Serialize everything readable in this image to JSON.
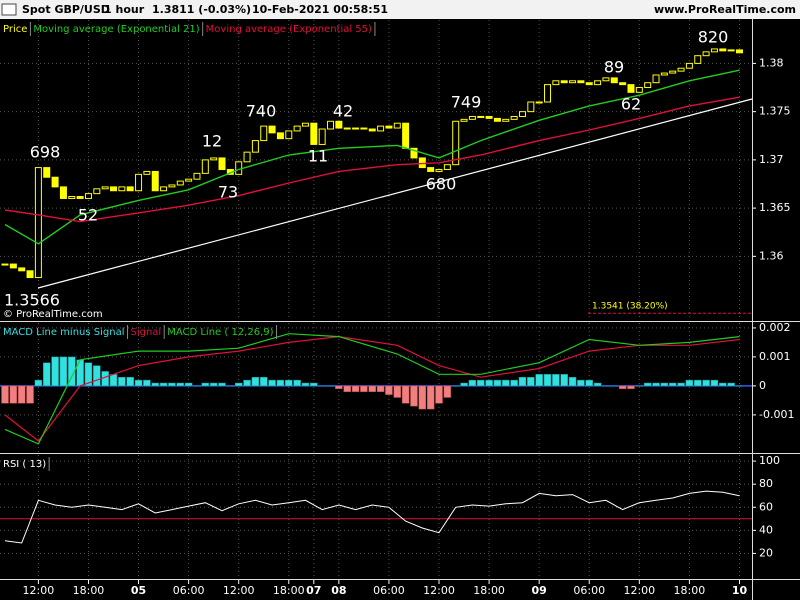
{
  "header": {
    "instrument": "Spot GBP/USD",
    "timeframe": "1 hour",
    "last": "1.3811 (-0.03%)",
    "timestamp": "10-Feb-2021 00:58:51",
    "site": "www.ProRealTime.com"
  },
  "chart_data": [
    {
      "type": "candlestick",
      "series": [
        {
          "name": "Price",
          "color": "#ffff00",
          "values": [
            1.3592,
            1.3588,
            1.3585,
            1.3578,
            1.3692,
            1.3682,
            1.3672,
            1.366,
            1.3662,
            1.366,
            1.3665,
            1.367,
            1.3672,
            1.3668,
            1.3672,
            1.3668,
            1.3685,
            1.3688,
            1.3668,
            1.3672,
            1.3674,
            1.3678,
            1.368,
            1.3686,
            1.37,
            1.3702,
            1.369,
            1.3685,
            1.3698,
            1.3708,
            1.372,
            1.3735,
            1.3728,
            1.3722,
            1.373,
            1.3735,
            1.3738,
            1.3716,
            1.3732,
            1.374,
            1.3733,
            1.3732,
            1.3733,
            1.3732,
            1.373,
            1.3735,
            1.3733,
            1.3738,
            1.3712,
            1.3702,
            1.3692,
            1.3688,
            1.369,
            1.3695,
            1.374,
            1.3742,
            1.3745,
            1.3745,
            1.3743,
            1.374,
            1.3742,
            1.3745,
            1.375,
            1.376,
            1.376,
            1.3778,
            1.3782,
            1.378,
            1.3782,
            1.378,
            1.3778,
            1.3782,
            1.3785,
            1.378,
            1.3778,
            1.377,
            1.3775,
            1.378,
            1.3788,
            1.379,
            1.3792,
            1.3795,
            1.38,
            1.3808,
            1.3812,
            1.3815,
            1.3813,
            1.3814,
            1.3811
          ]
        },
        {
          "name": "Moving average (Exponential 21)",
          "color": "#22cc22",
          "x": [
            0,
            4,
            9,
            16,
            22,
            28,
            34,
            40,
            47,
            52,
            57,
            64,
            70,
            76,
            82,
            88
          ],
          "values": [
            1.3633,
            1.3613,
            1.3643,
            1.3658,
            1.3669,
            1.369,
            1.3705,
            1.3712,
            1.3715,
            1.3702,
            1.372,
            1.3741,
            1.3756,
            1.3767,
            1.3782,
            1.3793
          ]
        },
        {
          "name": "Moving average (Exponential 55)",
          "color": "#e0103a",
          "x": [
            0,
            4,
            9,
            16,
            22,
            28,
            34,
            40,
            47,
            52,
            57,
            64,
            70,
            76,
            82,
            88
          ],
          "values": [
            1.3648,
            1.3643,
            1.3636,
            1.3645,
            1.3653,
            1.3663,
            1.3676,
            1.3688,
            1.3695,
            1.3697,
            1.3705,
            1.372,
            1.3731,
            1.3743,
            1.3756,
            1.3765
          ]
        }
      ],
      "ylim": [
        1.3534,
        1.3845
      ],
      "yticks": [
        1.36,
        1.365,
        1.37,
        1.375,
        1.38
      ],
      "grid": true,
      "annotations": [
        "698",
        "52",
        "12",
        "73",
        "740",
        "11",
        "42",
        "749",
        "680",
        "89",
        "62",
        "820",
        "1.3566"
      ],
      "fib_label": "1.3541 (38.20%)",
      "fib_level": 1.3541,
      "watermark": "© ProRealTime.com"
    },
    {
      "type": "macd",
      "series": [
        {
          "name": "MACD Line minus Signal",
          "type": "bar",
          "color": "#33e0e0",
          "negative_color": "#f08080",
          "values": [
            -0.0006,
            -0.0006,
            -0.0006,
            -0.0006,
            0.0002,
            0.0008,
            0.001,
            0.001,
            0.001,
            0.0009,
            0.0008,
            0.0007,
            0.0005,
            0.0004,
            0.0003,
            0.0003,
            0.0002,
            0.0002,
            0.0001,
            0.0001,
            0.0001,
            0.0001,
            0.0001,
            0,
            0.0001,
            0.0001,
            0.0001,
            0,
            0.0001,
            0.0002,
            0.0003,
            0.0003,
            0.0002,
            0.0002,
            0.0002,
            0.0002,
            0.0001,
            0.0001,
            0,
            0,
            -0.0001,
            -0.0002,
            -0.0002,
            -0.0002,
            -0.0002,
            -0.0002,
            -0.0003,
            -0.0004,
            -0.0006,
            -0.0007,
            -0.0008,
            -0.0008,
            -0.0006,
            -0.0004,
            0,
            0.0001,
            0.0002,
            0.0002,
            0.0002,
            0.0002,
            0.0002,
            0.0002,
            0.0003,
            0.0003,
            0.0004,
            0.0004,
            0.0004,
            0.0004,
            0.0003,
            0.0002,
            0.0002,
            0.0001,
            0,
            0,
            -0.0001,
            -0.0001,
            0,
            0.0001,
            0.0001,
            0.0001,
            0.0001,
            0.0001,
            0.0002,
            0.0002,
            0.0002,
            0.0002,
            0.0001,
            0.0001,
            0
          ]
        },
        {
          "name": "Signal",
          "color": "#e0103a",
          "x": [
            0,
            4,
            9,
            16,
            22,
            28,
            34,
            40,
            47,
            52,
            57,
            64,
            70,
            76,
            82,
            88
          ],
          "values": [
            -0.001,
            -0.0019,
            0,
            0.0007,
            0.001,
            0.0012,
            0.0015,
            0.0017,
            0.0014,
            0.0007,
            0.0003,
            0.0006,
            0.0012,
            0.0014,
            0.0014,
            0.0016
          ]
        },
        {
          "name": "MACD Line ( 12,26,9)",
          "color": "#22cc22",
          "x": [
            0,
            4,
            9,
            16,
            22,
            28,
            34,
            40,
            47,
            52,
            57,
            64,
            70,
            76,
            82,
            88
          ],
          "values": [
            -0.0015,
            -0.002,
            0.0009,
            0.0012,
            0.0012,
            0.0013,
            0.0018,
            0.0017,
            0.0011,
            0.0004,
            0.0004,
            0.0008,
            0.0016,
            0.0014,
            0.0015,
            0.0017
          ]
        }
      ],
      "ylim": [
        -0.00228,
        0.00217
      ],
      "yticks": [
        0.002,
        0.001,
        0,
        -0.001
      ],
      "grid": true
    },
    {
      "type": "line",
      "series": [
        {
          "name": "RSI ( 13)",
          "color": "#ffffff",
          "x": [
            0,
            2,
            4,
            6,
            8,
            10,
            12,
            14,
            16,
            18,
            20,
            22,
            24,
            26,
            28,
            30,
            32,
            34,
            36,
            38,
            40,
            42,
            44,
            46,
            48,
            50,
            52,
            54,
            56,
            58,
            60,
            62,
            64,
            66,
            68,
            70,
            72,
            74,
            76,
            78,
            80,
            82,
            84,
            86,
            88
          ],
          "values": [
            31,
            29,
            66,
            62,
            60,
            62,
            60,
            58,
            63,
            55,
            58,
            61,
            64,
            57,
            63,
            66,
            62,
            64,
            66,
            58,
            62,
            58,
            62,
            60,
            48,
            42,
            38,
            60,
            62,
            61,
            63,
            64,
            72,
            70,
            71,
            64,
            66,
            58,
            64,
            66,
            68,
            72,
            74,
            73,
            70
          ]
        }
      ],
      "ylim": [
        -1.3,
        105.3
      ],
      "yticks": [
        20,
        40,
        60,
        80,
        100
      ],
      "reference_line": 50,
      "grid": true,
      "xlim": [
        -0.6,
        89.5
      ],
      "xticks": [
        {
          "value": 4,
          "label": "12:00"
        },
        {
          "value": 10,
          "label": "18:00"
        },
        {
          "value": 16,
          "label": "05"
        },
        {
          "value": 22,
          "label": "06:00"
        },
        {
          "value": 28,
          "label": "12:00"
        },
        {
          "value": 34,
          "label": "18:00"
        },
        {
          "value": 37,
          "label": "07"
        },
        {
          "value": 40,
          "label": "08"
        },
        {
          "value": 46,
          "label": "06:00"
        },
        {
          "value": 52,
          "label": "12:00"
        },
        {
          "value": 58,
          "label": "18:00"
        },
        {
          "value": 64,
          "label": "09"
        },
        {
          "value": 70,
          "label": "06:00"
        },
        {
          "value": 76,
          "label": "12:00"
        },
        {
          "value": 82,
          "label": "18:00"
        },
        {
          "value": 88,
          "label": "10"
        }
      ]
    }
  ]
}
